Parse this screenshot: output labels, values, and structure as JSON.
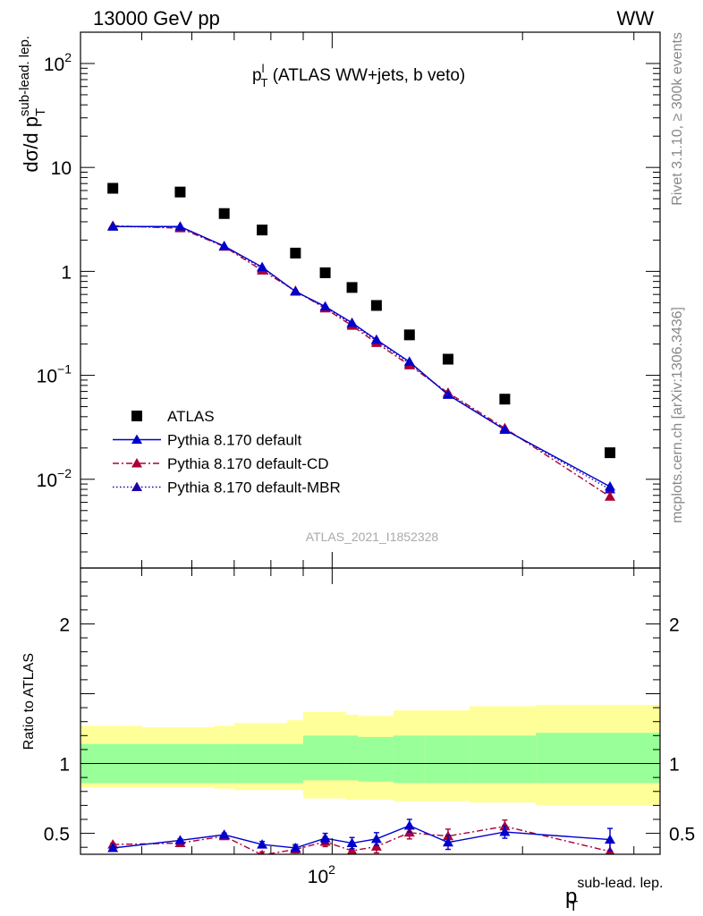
{
  "header": {
    "left": "13000 GeV pp",
    "right": "WW"
  },
  "title": {
    "main": "p",
    "sup": "l",
    "sub": "T",
    "rest": " (ATLAS WW+jets, b veto)"
  },
  "side": {
    "rivet": "Rivet 3.1.10, ≥ 300k events",
    "mcplots": "mcplots.cern.ch [arXiv:1306.3436]"
  },
  "watermark": "ATLAS_2021_I1852328",
  "ylabel_main": {
    "prefix": "dσ/d p",
    "sup": "sub-lead. lep.",
    "sub": "T"
  },
  "ylabel_ratio": "Ratio to ATLAS",
  "xlabel": {
    "main": "p",
    "sup": "sub-lead. lep.",
    "sub": "T"
  },
  "colors": {
    "data": "#000000",
    "default": "#0000cc",
    "cd": "#aa0033",
    "mbr": "#2200aa",
    "band_inner": "#99ff99",
    "band_outer": "#ffff99"
  },
  "chart_data": [
    {
      "type": "scatter",
      "panel": "main",
      "scale": "log-log",
      "xlim": [
        40,
        330
      ],
      "ylim": [
        0.0014,
        200
      ],
      "y_ticks": [
        {
          "base": "10",
          "exp": "2"
        },
        {
          "base": "10",
          "exp": ""
        },
        {
          "base": "1",
          "exp": ""
        },
        {
          "base": "10",
          "exp": "−1"
        },
        {
          "base": "10",
          "exp": "−2"
        }
      ],
      "x": [
        45,
        57.5,
        67.5,
        77.5,
        87.5,
        97.5,
        107.5,
        117.5,
        132.5,
        152.5,
        187.5,
        275
      ],
      "series": [
        {
          "name": "ATLAS",
          "values": [
            6.3,
            5.8,
            3.6,
            2.5,
            1.5,
            0.97,
            0.7,
            0.47,
            0.245,
            0.143,
            0.059,
            0.018
          ]
        },
        {
          "name": "Pythia 8.170 default",
          "values": [
            2.7,
            2.7,
            1.75,
            1.1,
            0.64,
            0.46,
            0.32,
            0.22,
            0.135,
            0.065,
            0.03,
            0.0085
          ]
        },
        {
          "name": "Pythia 8.170 default-CD",
          "values": [
            2.75,
            2.6,
            1.73,
            1.02,
            0.65,
            0.44,
            0.3,
            0.205,
            0.125,
            0.068,
            0.031,
            0.0068
          ]
        },
        {
          "name": "Pythia 8.170 default-MBR",
          "values": [
            2.7,
            2.65,
            1.75,
            1.07,
            0.64,
            0.45,
            0.31,
            0.215,
            0.13,
            0.066,
            0.03,
            0.008
          ]
        }
      ]
    },
    {
      "type": "line",
      "panel": "ratio",
      "scale": "log-x",
      "xlim": [
        40,
        330
      ],
      "ylim": [
        0.35,
        2.4
      ],
      "y_ticks": [
        "2",
        "1",
        "0.5"
      ],
      "x_ticks": [
        {
          "base": "10",
          "exp": "2"
        }
      ],
      "x": [
        45,
        57.5,
        67.5,
        77.5,
        87.5,
        97.5,
        107.5,
        117.5,
        132.5,
        152.5,
        187.5,
        275
      ],
      "bin_edges": [
        40,
        50,
        65,
        70,
        85,
        90,
        105,
        110,
        125,
        140,
        165,
        210,
        340
      ],
      "band_inner": [
        [
          0.86,
          1.14
        ],
        [
          0.86,
          1.14
        ],
        [
          0.86,
          1.14
        ],
        [
          0.86,
          1.14
        ],
        [
          0.86,
          1.14
        ],
        [
          0.88,
          1.2
        ],
        [
          0.88,
          1.2
        ],
        [
          0.87,
          1.19
        ],
        [
          0.86,
          1.2
        ],
        [
          0.86,
          1.2
        ],
        [
          0.86,
          1.2
        ],
        [
          0.86,
          1.22
        ]
      ],
      "band_outer": [
        [
          0.83,
          1.27
        ],
        [
          0.83,
          1.26
        ],
        [
          0.82,
          1.27
        ],
        [
          0.81,
          1.29
        ],
        [
          0.81,
          1.31
        ],
        [
          0.75,
          1.37
        ],
        [
          0.74,
          1.35
        ],
        [
          0.74,
          1.34
        ],
        [
          0.73,
          1.38
        ],
        [
          0.73,
          1.38
        ],
        [
          0.72,
          1.41
        ],
        [
          0.7,
          1.42
        ]
      ],
      "reference": 1.0,
      "series": [
        {
          "name": "Pythia 8.170 default",
          "values": [
            0.395,
            0.45,
            0.49,
            0.42,
            0.395,
            0.465,
            0.43,
            0.46,
            0.555,
            0.435,
            0.51,
            0.455
          ],
          "errors": [
            0.01,
            0.01,
            0.012,
            0.022,
            0.025,
            0.035,
            0.04,
            0.045,
            0.045,
            0.05,
            0.045,
            0.08
          ]
        },
        {
          "name": "Pythia 8.170 default-CD",
          "values": [
            0.42,
            0.43,
            0.48,
            0.345,
            0.385,
            0.44,
            0.375,
            0.405,
            0.505,
            0.48,
            0.55,
            0.37
          ],
          "errors": [
            0.01,
            0.01,
            0.012,
            0.022,
            0.025,
            0.035,
            0.04,
            0.045,
            0.045,
            0.05,
            0.045,
            0.08
          ]
        }
      ]
    }
  ]
}
